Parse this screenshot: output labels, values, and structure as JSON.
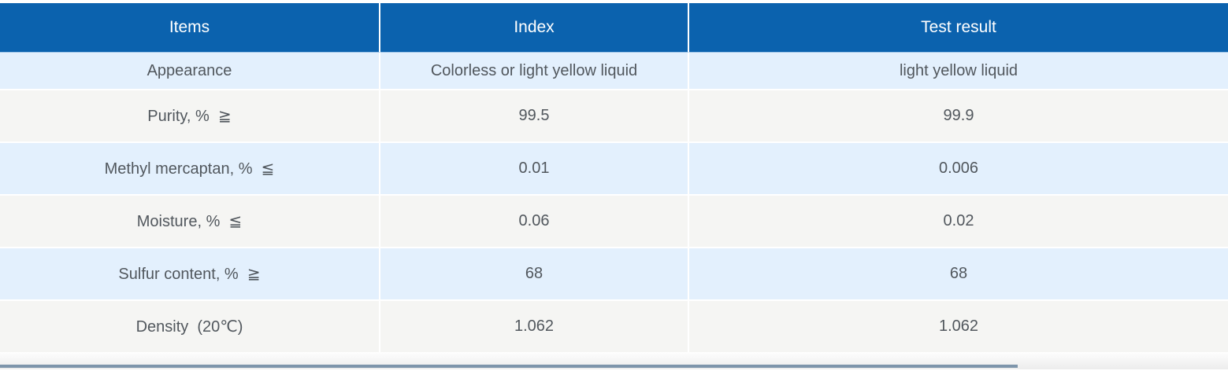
{
  "table": {
    "columns": [
      {
        "id": "item",
        "label": "Items"
      },
      {
        "id": "index",
        "label": "Index"
      },
      {
        "id": "test_result",
        "label": "Test result"
      }
    ],
    "rows": [
      {
        "item": "Appearance",
        "index": "Colorless or light yellow liquid",
        "test_result": "light yellow liquid"
      },
      {
        "item": "Purity, %  ≧",
        "index": "99.5",
        "test_result": "99.9"
      },
      {
        "item": "Methyl mercaptan, %  ≦",
        "index": "0.01",
        "test_result": "0.006"
      },
      {
        "item": "Moisture, %  ≦",
        "index": "0.06",
        "test_result": "0.02"
      },
      {
        "item": "Sulfur content, %  ≧",
        "index": "68",
        "test_result": "68"
      },
      {
        "item": "Density  (20℃)",
        "index": "1.062",
        "test_result": "1.062"
      }
    ],
    "colors": {
      "header_bg": "#0b62ae",
      "header_text": "#ffffff",
      "row_alt_blue": "#e3f0fd",
      "row_alt_gray": "#f5f5f3",
      "body_text": "#51575d"
    }
  },
  "scrollbar": {
    "orientation": "horizontal",
    "thumb_color": "#7e95ab"
  }
}
